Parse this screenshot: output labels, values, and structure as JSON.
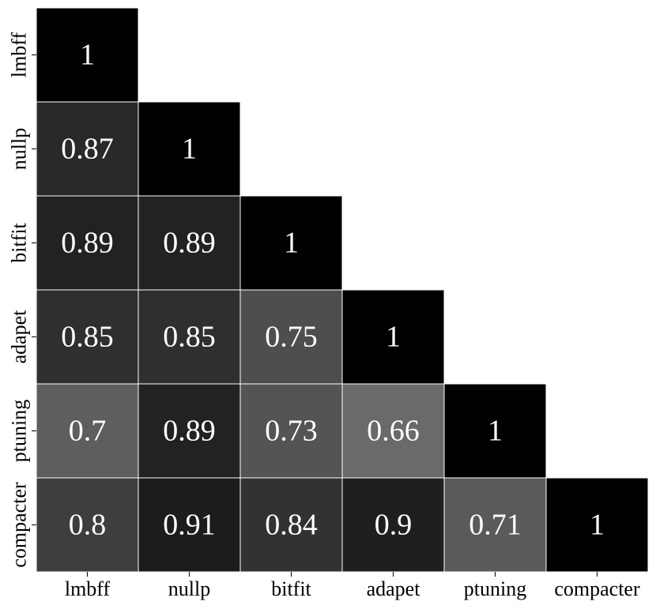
{
  "chart_data": {
    "type": "heatmap",
    "title": "",
    "xlabel": "",
    "ylabel": "",
    "colorbar": "none",
    "colormap": "grayscale, higher value darker (1 = black)",
    "grid": false,
    "mask": "upper triangle hidden",
    "rows": [
      "lmbff",
      "nullp",
      "bitfit",
      "adapet",
      "ptuning",
      "compacter"
    ],
    "cols": [
      "lmbff",
      "nullp",
      "bitfit",
      "adapet",
      "ptuning",
      "compacter"
    ],
    "values": [
      [
        1
      ],
      [
        0.87,
        1
      ],
      [
        0.89,
        0.89,
        1
      ],
      [
        0.85,
        0.85,
        0.75,
        1
      ],
      [
        0.7,
        0.89,
        0.73,
        0.66,
        1
      ],
      [
        0.8,
        0.91,
        0.84,
        0.9,
        0.71,
        1
      ]
    ],
    "labels": [
      [
        "1"
      ],
      [
        "0.87",
        "1"
      ],
      [
        "0.89",
        "0.89",
        "1"
      ],
      [
        "0.85",
        "0.85",
        "0.75",
        "1"
      ],
      [
        "0.7",
        "0.89",
        "0.73",
        "0.66",
        "1"
      ],
      [
        "0.8",
        "0.91",
        "0.84",
        "0.9",
        "0.71",
        "1"
      ]
    ]
  }
}
